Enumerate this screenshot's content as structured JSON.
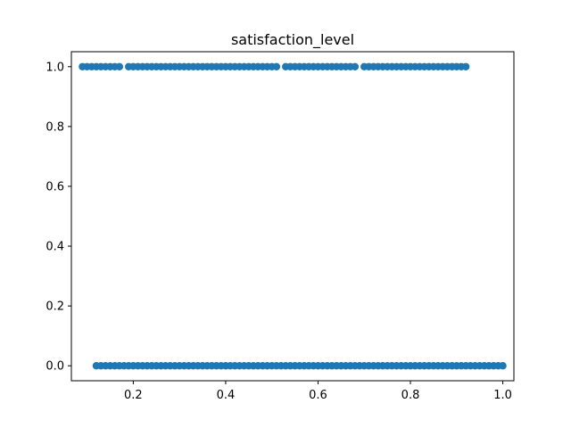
{
  "chart_data": {
    "type": "scatter",
    "title": "satisfaction_level",
    "xlabel": "",
    "ylabel": "",
    "xlim": [
      0.066,
      1.024
    ],
    "ylim": [
      -0.05,
      1.05
    ],
    "x_ticks": [
      "0.2",
      "0.4",
      "0.6",
      "0.8",
      "1.0"
    ],
    "y_ticks": [
      "0.0",
      "0.2",
      "0.4",
      "0.6",
      "0.8",
      "1.0"
    ],
    "grid": false,
    "color": "#1f77b4",
    "series": [
      {
        "x": [
          0.09,
          0.1,
          0.11,
          0.12,
          0.13,
          0.14,
          0.15,
          0.16,
          0.17,
          0.19,
          0.2,
          0.21,
          0.22,
          0.23,
          0.24,
          0.25,
          0.26,
          0.27,
          0.28,
          0.29,
          0.3,
          0.31,
          0.32,
          0.33,
          0.34,
          0.35,
          0.36,
          0.37,
          0.38,
          0.39,
          0.4,
          0.41,
          0.42,
          0.43,
          0.44,
          0.45,
          0.46,
          0.47,
          0.48,
          0.49,
          0.5,
          0.51,
          0.53,
          0.54,
          0.55,
          0.56,
          0.57,
          0.58,
          0.59,
          0.6,
          0.61,
          0.62,
          0.63,
          0.64,
          0.65,
          0.66,
          0.67,
          0.68,
          0.7,
          0.71,
          0.72,
          0.73,
          0.74,
          0.75,
          0.76,
          0.77,
          0.78,
          0.79,
          0.8,
          0.81,
          0.82,
          0.83,
          0.84,
          0.85,
          0.86,
          0.87,
          0.88,
          0.89,
          0.9,
          0.91,
          0.92
        ],
        "y": 1
      },
      {
        "x": [
          0.12,
          0.13,
          0.14,
          0.15,
          0.16,
          0.17,
          0.18,
          0.19,
          0.2,
          0.21,
          0.22,
          0.23,
          0.24,
          0.25,
          0.26,
          0.27,
          0.28,
          0.29,
          0.3,
          0.31,
          0.32,
          0.33,
          0.34,
          0.35,
          0.36,
          0.37,
          0.38,
          0.39,
          0.4,
          0.41,
          0.42,
          0.43,
          0.44,
          0.45,
          0.46,
          0.47,
          0.48,
          0.49,
          0.5,
          0.51,
          0.52,
          0.53,
          0.54,
          0.55,
          0.56,
          0.57,
          0.58,
          0.59,
          0.6,
          0.61,
          0.62,
          0.63,
          0.64,
          0.65,
          0.66,
          0.67,
          0.68,
          0.69,
          0.7,
          0.71,
          0.72,
          0.73,
          0.74,
          0.75,
          0.76,
          0.77,
          0.78,
          0.79,
          0.8,
          0.81,
          0.82,
          0.83,
          0.84,
          0.85,
          0.86,
          0.87,
          0.88,
          0.89,
          0.9,
          0.91,
          0.92,
          0.93,
          0.94,
          0.95,
          0.96,
          0.97,
          0.98,
          0.99,
          1.0
        ],
        "y": 0
      }
    ]
  }
}
